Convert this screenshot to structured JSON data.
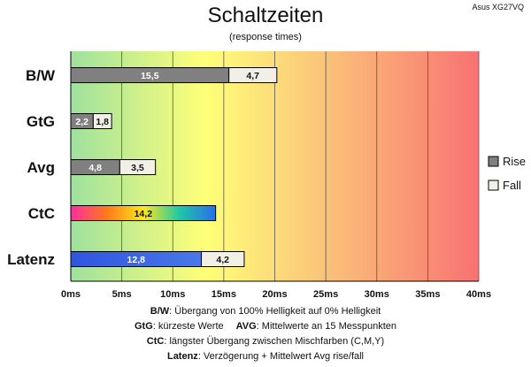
{
  "chart_data": {
    "type": "bar",
    "orientation": "horizontal",
    "stacked": true,
    "title": "Schaltzeiten",
    "subtitle": "(response times)",
    "corner_label": "Asus XG27VQ",
    "x_range": [
      0,
      40
    ],
    "x_tick_step": 5,
    "x_tick_labels": [
      "0ms",
      "5ms",
      "10ms",
      "15ms",
      "20ms",
      "25ms",
      "30ms",
      "35ms",
      "40ms"
    ],
    "grid": true,
    "background": "gradient green-yellow-red",
    "legend_position": "right",
    "legend": [
      {
        "name": "Rise",
        "color": "#808080"
      },
      {
        "name": "Fall",
        "color": "#f2f0e6"
      }
    ],
    "categories": [
      {
        "label": "B/W",
        "segments": [
          {
            "series": "Rise",
            "value": 15.5,
            "label": "15,5",
            "fill": "rise"
          },
          {
            "series": "Fall",
            "value": 4.7,
            "label": "4,7",
            "fill": "fall"
          }
        ]
      },
      {
        "label": "GtG",
        "segments": [
          {
            "series": "Rise",
            "value": 2.2,
            "label": "2,2",
            "fill": "rise"
          },
          {
            "series": "Fall",
            "value": 1.8,
            "label": "1,8",
            "fill": "fall"
          }
        ]
      },
      {
        "label": "Avg",
        "segments": [
          {
            "series": "Rise",
            "value": 4.8,
            "label": "4,8",
            "fill": "rise"
          },
          {
            "series": "Fall",
            "value": 3.5,
            "label": "3,5",
            "fill": "fall"
          }
        ]
      },
      {
        "label": "CtC",
        "segments": [
          {
            "series": "",
            "value": 14.2,
            "label": "14,2",
            "fill": "rainbow"
          }
        ]
      },
      {
        "label": "Latenz",
        "segments": [
          {
            "series": "",
            "value": 12.8,
            "label": "12,8",
            "fill": "blue"
          },
          {
            "series": "",
            "value": 4.2,
            "label": "4,2",
            "fill": "fall"
          }
        ]
      }
    ],
    "colors": {
      "rise": "#808080",
      "fall": "#f2f0e6",
      "blue": "#3a62e0",
      "bar_border": "#000000",
      "grid": "#555555",
      "bg_green": "#9ee19e",
      "bg_yellow": "#ffff78",
      "bg_red": "#f87272"
    }
  },
  "notes": {
    "line1": {
      "key": "B/W",
      "text": ":  Übergang von 100% Helligkeit auf 0% Helligkeit"
    },
    "line2": {
      "key_a": "GtG",
      "text_a": ": kürzeste  Werte",
      "key_b": "AVG",
      "text_b": ": Mittelwerte  an 15 Messpunkten"
    },
    "line3": {
      "key": "CtC",
      "text": ": längster Übergang  zwischen Mischfarben (C,M,Y)"
    },
    "line4": {
      "key": "Latenz",
      "text": ": Verzögerung  + Mittelwert  Avg rise/fall"
    }
  }
}
